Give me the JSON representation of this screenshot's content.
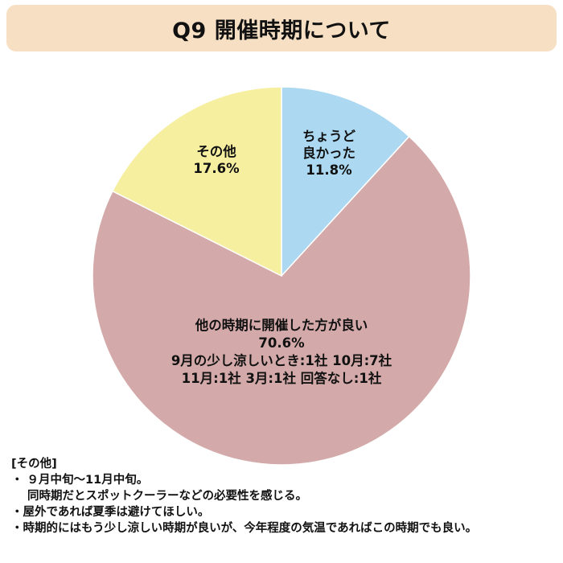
{
  "title": "Q9 開催時期について",
  "colors": {
    "title_background": "#f6dfc3",
    "slice_good": "#acd8f2",
    "slice_other_time": "#d3aaa9",
    "slice_other": "#f6efa0",
    "slice_border": "#ffffff"
  },
  "chart_data": {
    "type": "pie",
    "title": "Q9 開催時期について",
    "slices": [
      {
        "label_lines": [
          "ちょうど",
          "良かった",
          "11.8%"
        ],
        "value": 11.8
      },
      {
        "label_lines": [
          "他の時期に開催した方が良い",
          "70.6%",
          "9月の少し涼しいとき:1社 10月:7社",
          "11月:1社 3月:1社 回答なし:1社"
        ],
        "value": 70.6
      },
      {
        "label_lines": [
          "その他",
          "17.6%"
        ],
        "value": 17.6
      }
    ]
  },
  "notes": {
    "heading": "[その他]",
    "items": [
      "・ ９月中旬〜11月中旬。",
      "同時期だとスポットクーラーなどの必要性を感じる。",
      "・屋外であれば夏季は避けてほしい。",
      "・時期的にはもう少し涼しい時期が良いが、今年程度の気温であればこの時期でも良い。"
    ]
  }
}
